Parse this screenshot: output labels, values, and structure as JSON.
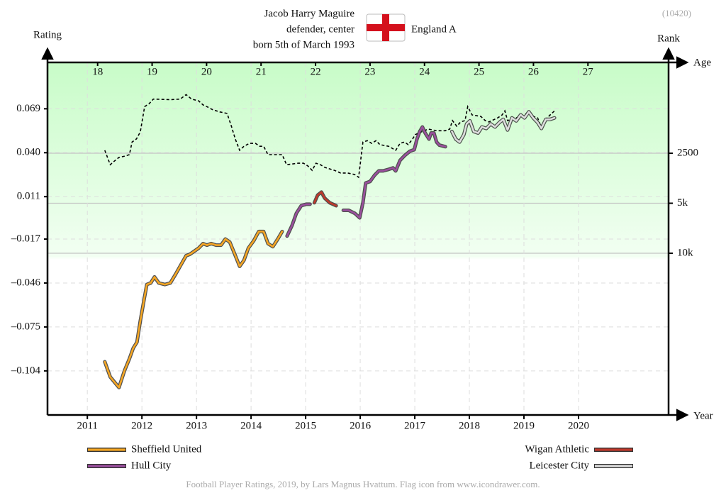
{
  "chart_data": {
    "type": "line",
    "title_lines": [
      "Jacob Harry Maguire",
      "defender, center",
      "born 5th of March 1993"
    ],
    "team": "England A",
    "player_id": "(10420)",
    "y_label": "Rating",
    "y2_label": "Rank",
    "x_label": "Year",
    "x2_label": "Age",
    "footer": "Football Player Ratings, 2019, by Lars Magnus Hvattum. Flag icon from www.icondrawer.com.",
    "xlim": [
      2010.27,
      2021.65
    ],
    "xticks": [
      2011,
      2012,
      2013,
      2014,
      2015,
      2016,
      2017,
      2018,
      2019,
      2020
    ],
    "x2lim": [
      17.08,
      28.48
    ],
    "x2ticks": [
      18,
      19,
      20,
      21,
      22,
      23,
      24,
      25,
      26,
      27
    ],
    "ylim": [
      -0.1331,
      0.0996
    ],
    "yticks": [
      {
        "value": -0.104,
        "label": "–0.104"
      },
      {
        "value": -0.075,
        "label": "–0.075"
      },
      {
        "value": -0.046,
        "label": "–0.046"
      },
      {
        "value": -0.017,
        "label": "–0.017"
      },
      0.011,
      {
        "value": 0.04,
        "label": "0.040"
      },
      0.069
    ],
    "y2lim": [
      94100,
      710
    ],
    "y2log": true,
    "y2ticks": [
      2500,
      {
        "value": 5000,
        "label": "5k"
      },
      {
        "value": 10000,
        "label": "10k"
      }
    ],
    "grid": true,
    "series": [
      {
        "name": "Sheffield United",
        "color": "#f5a623",
        "x": [
          2011.32,
          2011.42,
          2011.51,
          2011.58,
          2011.68,
          2011.77,
          2011.84,
          2011.91,
          2011.97,
          2012.04,
          2012.09,
          2012.16,
          2012.23,
          2012.31,
          2012.42,
          2012.52,
          2012.62,
          2012.73,
          2012.81,
          2012.88,
          2012.96,
          2013.04,
          2013.12,
          2013.19,
          2013.27,
          2013.36,
          2013.45,
          2013.53,
          2013.61,
          2013.69,
          2013.79,
          2013.87,
          2013.95,
          2014.05,
          2014.14,
          2014.23,
          2014.31,
          2014.4,
          2014.49,
          2014.57
        ],
        "values": [
          -0.098,
          -0.108,
          -0.112,
          -0.115,
          -0.104,
          -0.096,
          -0.089,
          -0.085,
          -0.071,
          -0.057,
          -0.047,
          -0.046,
          -0.042,
          -0.046,
          -0.047,
          -0.046,
          -0.04,
          -0.033,
          -0.028,
          -0.027,
          -0.025,
          -0.023,
          -0.02,
          -0.021,
          -0.02,
          -0.021,
          -0.021,
          -0.017,
          -0.019,
          -0.026,
          -0.035,
          -0.031,
          -0.023,
          -0.018,
          -0.012,
          -0.012,
          -0.02,
          -0.022,
          -0.017,
          -0.012
        ]
      },
      {
        "name": "Hull City",
        "color": "#9b4f9e",
        "x": [
          2014.66,
          2014.75,
          2014.83,
          2014.92,
          2015.01,
          2015.08,
          null,
          2015.69,
          2015.79,
          2015.9,
          2015.99,
          2016.05,
          2016.1,
          2016.18,
          2016.26,
          2016.34,
          2016.42,
          2016.52,
          2016.6,
          2016.65,
          2016.73,
          2016.81,
          2016.91,
          2016.99,
          2017.04,
          2017.09,
          2017.14,
          2017.19,
          2017.26,
          2017.3,
          2017.35,
          2017.4,
          2017.45,
          2017.56
        ],
        "values": [
          -0.015,
          -0.008,
          0.0,
          0.005,
          0.006,
          0.006,
          null,
          0.002,
          0.002,
          0.0,
          -0.003,
          0.007,
          0.02,
          0.021,
          0.025,
          0.028,
          0.028,
          0.029,
          0.03,
          0.028,
          0.035,
          0.038,
          0.041,
          0.042,
          0.049,
          0.054,
          0.057,
          0.053,
          0.049,
          0.053,
          0.053,
          0.047,
          0.045,
          0.044
        ]
      },
      {
        "name": "Wigan Athletic",
        "color": "#c0392b",
        "x": [
          2015.16,
          2015.22,
          2015.29,
          2015.35,
          2015.44,
          2015.56
        ],
        "values": [
          0.007,
          0.012,
          0.014,
          0.01,
          0.007,
          0.005
        ]
      },
      {
        "name": "Leicester City",
        "color": "#dddddd",
        "x": [
          2017.68,
          2017.75,
          2017.82,
          2017.9,
          2017.95,
          2018.01,
          2018.08,
          2018.16,
          2018.23,
          2018.31,
          2018.39,
          2018.47,
          2018.55,
          2018.62,
          2018.7,
          2018.78,
          2018.86,
          2018.94,
          2019.01,
          2019.09,
          2019.17,
          2019.25,
          2019.32,
          2019.4,
          2019.48,
          2019.56
        ],
        "values": [
          0.054,
          0.049,
          0.047,
          0.052,
          0.059,
          0.061,
          0.054,
          0.053,
          0.057,
          0.056,
          0.059,
          0.057,
          0.06,
          0.062,
          0.055,
          0.063,
          0.061,
          0.065,
          0.063,
          0.067,
          0.063,
          0.06,
          0.056,
          0.062,
          0.062,
          0.063
        ]
      }
    ],
    "rank": {
      "axis": "y2",
      "color": "#000000",
      "dashed": true,
      "x": [
        2011.32,
        2011.42,
        2011.51,
        2011.58,
        2011.69,
        2011.77,
        2011.82,
        2011.9,
        2011.97,
        2012.05,
        2012.13,
        2012.21,
        2012.52,
        2012.7,
        2012.81,
        2012.91,
        2013.04,
        2013.12,
        2013.19,
        2013.3,
        2013.43,
        2013.56,
        2013.64,
        2013.71,
        2013.79,
        2013.87,
        2013.97,
        2014.08,
        2014.16,
        2014.23,
        2014.31,
        2014.57,
        2014.65,
        2014.86,
        2014.96,
        2015.04,
        2015.12,
        2015.19,
        2015.27,
        2015.35,
        2015.43,
        2015.53,
        2015.64,
        2015.77,
        2015.9,
        2015.97,
        2016.05,
        2016.13,
        2016.21,
        2016.29,
        2016.36,
        2016.52,
        2016.65,
        2016.73,
        2016.81,
        2016.88,
        2016.96,
        2017.01,
        2017.17,
        2017.25,
        2017.4,
        2017.56,
        2017.64,
        2017.69,
        2017.77,
        2017.84,
        2017.92,
        2017.97,
        2018.05,
        2018.21,
        2018.29,
        2018.36,
        2018.52,
        2018.6,
        2018.65,
        2018.7,
        2018.86,
        2019.01,
        2019.09,
        2019.17,
        2019.25,
        2019.32,
        2019.4,
        2019.48,
        2019.56
      ],
      "values": [
        2400,
        2930,
        2760,
        2650,
        2600,
        2550,
        2140,
        2050,
        1860,
        1310,
        1260,
        1180,
        1190,
        1180,
        1110,
        1180,
        1210,
        1280,
        1310,
        1370,
        1410,
        1440,
        1720,
        2050,
        2400,
        2270,
        2180,
        2180,
        2270,
        2270,
        2550,
        2550,
        2930,
        2870,
        2870,
        2980,
        3170,
        2870,
        2930,
        3040,
        3100,
        3170,
        3290,
        3290,
        3360,
        3490,
        2140,
        2100,
        2180,
        2100,
        2220,
        2270,
        2400,
        2180,
        2140,
        2220,
        2050,
        1930,
        1830,
        1790,
        1830,
        1830,
        1790,
        1590,
        1720,
        1620,
        1590,
        1310,
        1470,
        1500,
        1590,
        1620,
        1530,
        1470,
        1390,
        1590,
        1530,
        1470,
        1410,
        1500,
        1530,
        1760,
        1560,
        1470,
        1390
      ]
    }
  }
}
